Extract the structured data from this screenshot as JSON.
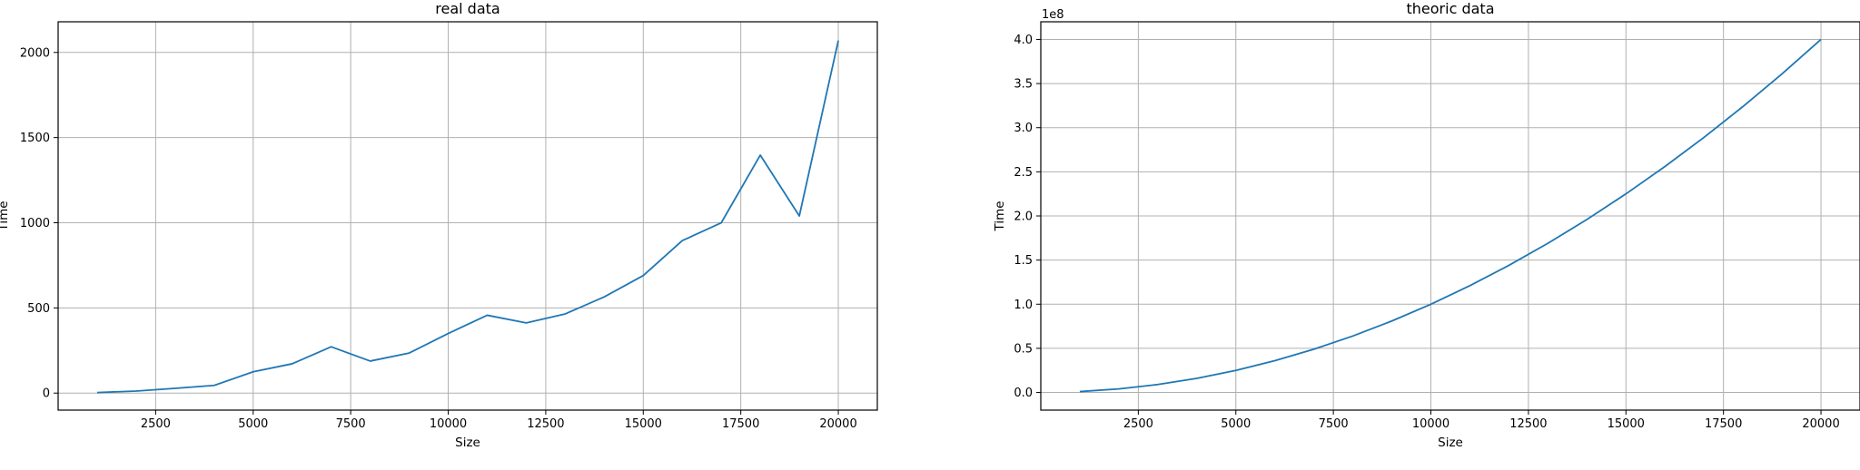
{
  "chart_data": [
    {
      "type": "line",
      "title": "real data",
      "xlabel": "Size",
      "ylabel": "Time",
      "xlim": [
        0,
        21000
      ],
      "ylim": [
        -100,
        2180
      ],
      "xticks": [
        2500,
        5000,
        7500,
        10000,
        12500,
        15000,
        17500,
        20000
      ],
      "xtick_labels": [
        "2500",
        "5000",
        "7500",
        "10000",
        "12500",
        "15000",
        "17500",
        "20000"
      ],
      "yticks": [
        0,
        500,
        1000,
        1500,
        2000
      ],
      "ytick_labels": [
        "0",
        "500",
        "1000",
        "1500",
        "2000"
      ],
      "offset_text": "",
      "grid": true,
      "color": "#1f77b4",
      "x": [
        1000,
        2000,
        3000,
        4000,
        5000,
        6000,
        7000,
        8000,
        9000,
        10000,
        11000,
        12000,
        13000,
        14000,
        15000,
        16000,
        17000,
        18000,
        19000,
        20000
      ],
      "y": [
        3,
        12,
        28,
        45,
        125,
        172,
        272,
        188,
        235,
        350,
        457,
        412,
        465,
        565,
        690,
        895,
        1000,
        1397,
        1040,
        2070
      ]
    },
    {
      "type": "line",
      "title": "theoric data",
      "xlabel": "Size",
      "ylabel": "Time",
      "xlim": [
        0,
        21000
      ],
      "ylim": [
        -0.2,
        4.2
      ],
      "xticks": [
        2500,
        5000,
        7500,
        10000,
        12500,
        15000,
        17500,
        20000
      ],
      "xtick_labels": [
        "2500",
        "5000",
        "7500",
        "10000",
        "12500",
        "15000",
        "17500",
        "20000"
      ],
      "yticks": [
        0,
        0.5,
        1.0,
        1.5,
        2.0,
        2.5,
        3.0,
        3.5,
        4.0
      ],
      "ytick_labels": [
        "0.0",
        "0.5",
        "1.0",
        "1.5",
        "2.0",
        "2.5",
        "3.0",
        "3.5",
        "4.0"
      ],
      "offset_text": "1e8",
      "grid": true,
      "color": "#1f77b4",
      "x": [
        1000,
        2000,
        3000,
        4000,
        5000,
        6000,
        7000,
        8000,
        9000,
        10000,
        11000,
        12000,
        13000,
        14000,
        15000,
        16000,
        17000,
        18000,
        19000,
        20000
      ],
      "y": [
        0.01,
        0.04,
        0.09,
        0.16,
        0.25,
        0.36,
        0.49,
        0.64,
        0.81,
        1.0,
        1.21,
        1.44,
        1.69,
        1.96,
        2.25,
        2.56,
        2.89,
        3.24,
        3.61,
        4.0
      ]
    }
  ]
}
